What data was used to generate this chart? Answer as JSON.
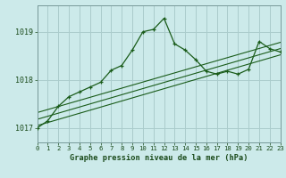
{
  "title": "Graphe pression niveau de la mer (hPa)",
  "bg_color": "#cceaea",
  "grid_color": "#aacccc",
  "line_color": "#1a5c1a",
  "text_color": "#1a4a1a",
  "x_labels": [
    "0",
    "1",
    "2",
    "3",
    "4",
    "5",
    "6",
    "7",
    "8",
    "9",
    "10",
    "11",
    "12",
    "13",
    "14",
    "15",
    "16",
    "17",
    "18",
    "19",
    "20",
    "21",
    "22",
    "23"
  ],
  "yticks": [
    1017,
    1018,
    1019
  ],
  "xlim": [
    0,
    23
  ],
  "ylim": [
    1016.7,
    1019.55
  ],
  "main_data_x": [
    0,
    1,
    2,
    3,
    4,
    5,
    6,
    7,
    8,
    9,
    10,
    11,
    12,
    13,
    14,
    15,
    16,
    17,
    18,
    19,
    20,
    21,
    22,
    23
  ],
  "main_data_y": [
    1017.0,
    1017.15,
    1017.45,
    1017.65,
    1017.75,
    1017.85,
    1017.95,
    1018.2,
    1018.3,
    1018.62,
    1019.0,
    1019.05,
    1019.28,
    1018.75,
    1018.62,
    1018.42,
    1018.18,
    1018.12,
    1018.18,
    1018.12,
    1018.22,
    1018.8,
    1018.65,
    1018.58
  ],
  "trend1_x": [
    0,
    23
  ],
  "trend1_y": [
    1017.05,
    1018.52
  ],
  "trend2_x": [
    0,
    23
  ],
  "trend2_y": [
    1017.18,
    1018.65
  ],
  "trend3_x": [
    0,
    23
  ],
  "trend3_y": [
    1017.32,
    1018.78
  ]
}
